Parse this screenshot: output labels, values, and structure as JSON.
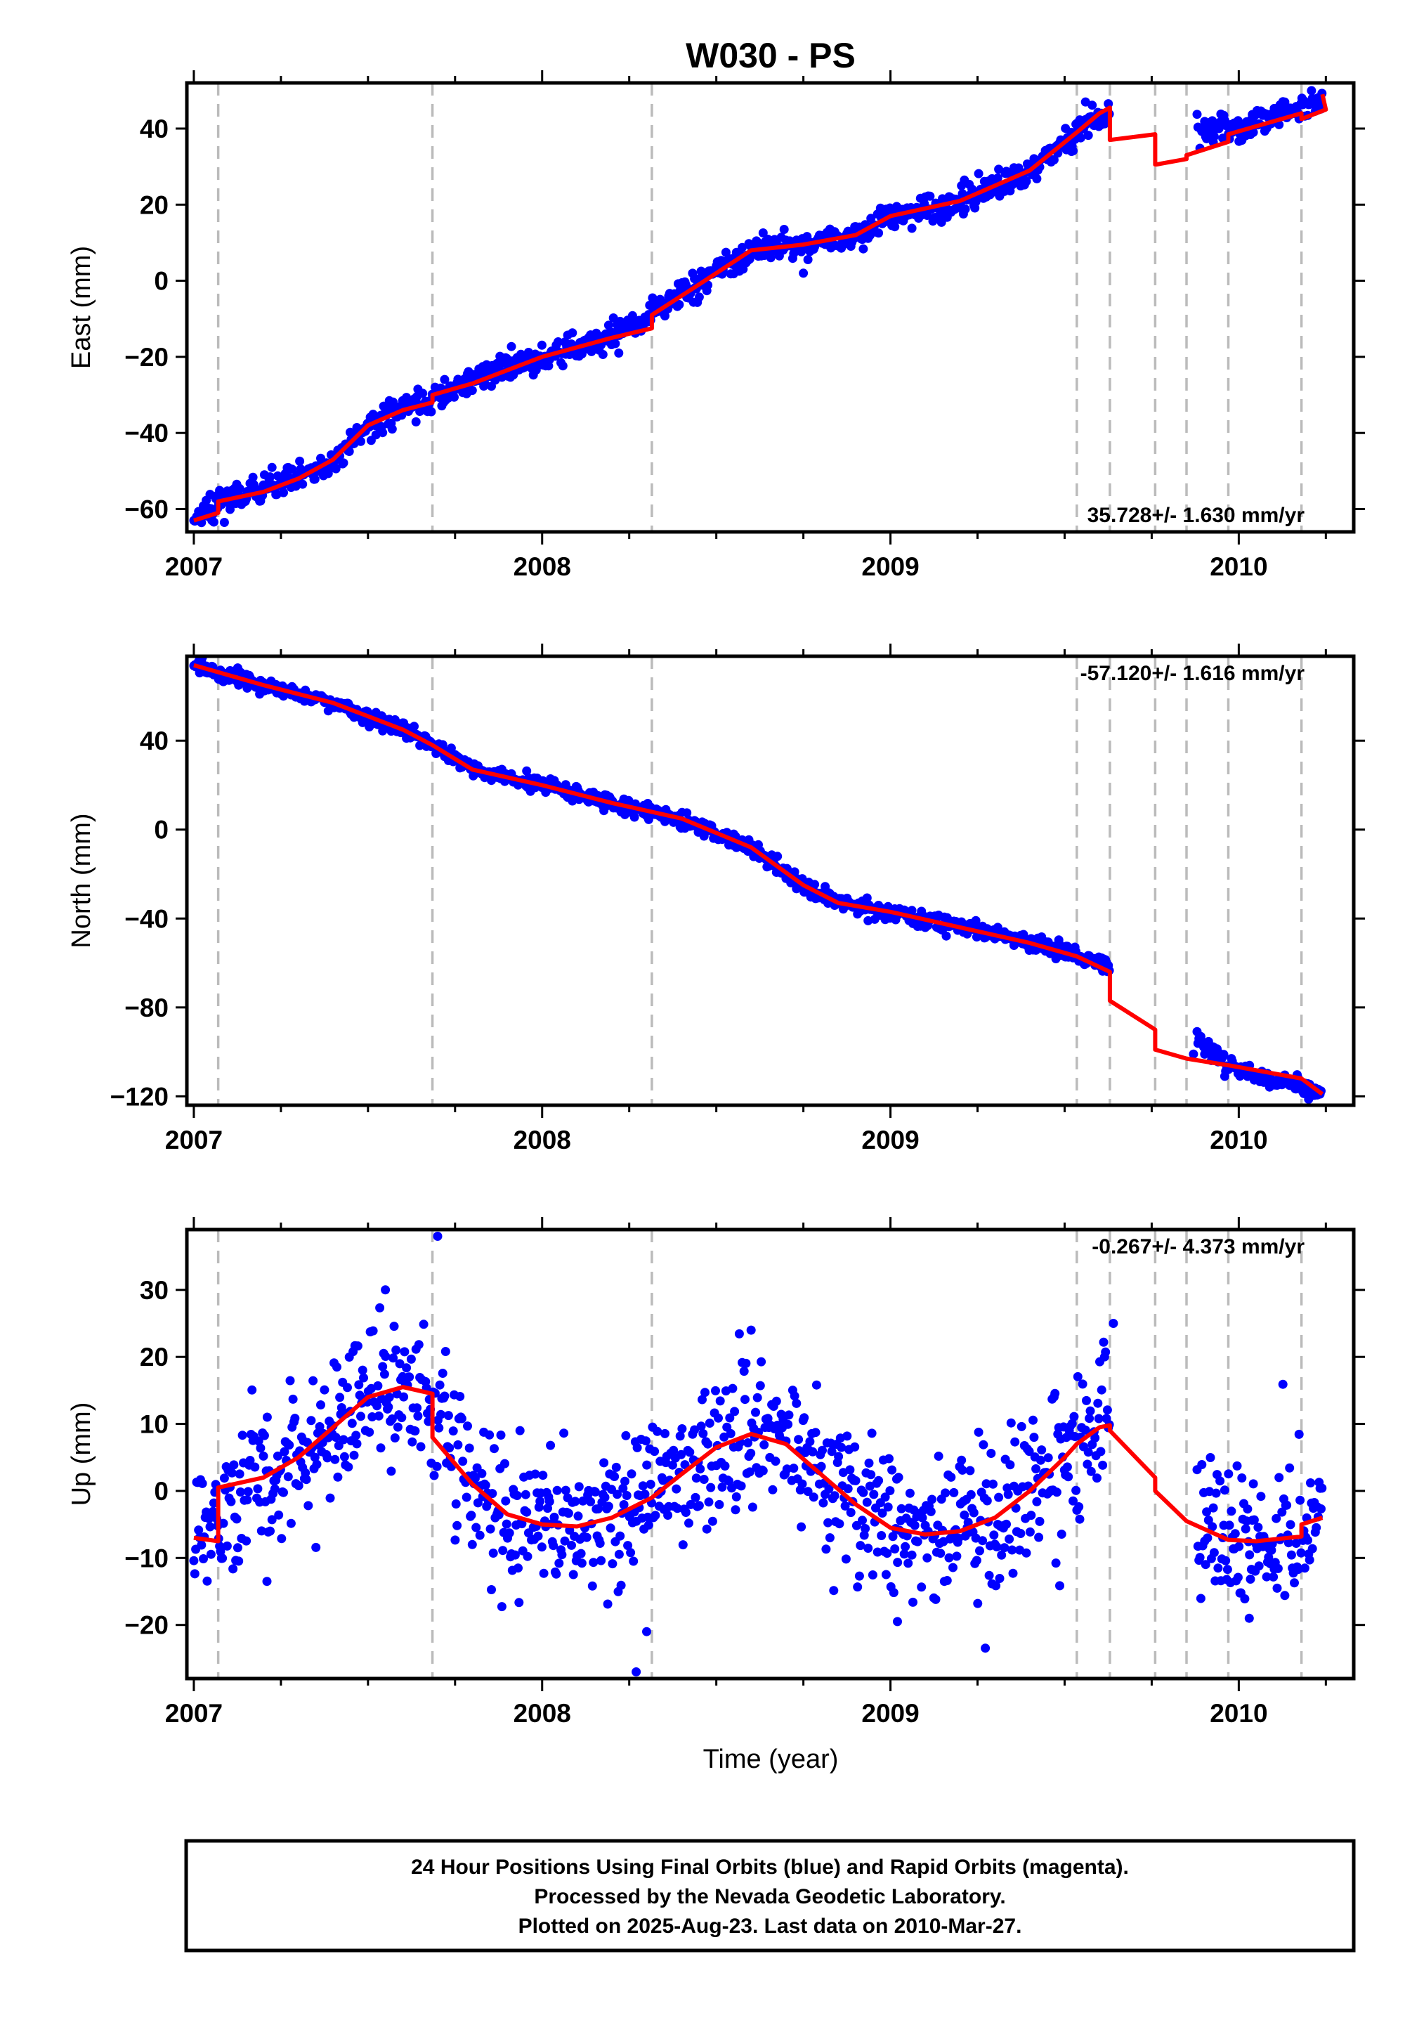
{
  "title": "W030 - PS",
  "xlabel": "Time (year)",
  "footer_lines": [
    "24 Hour Positions Using Final Orbits (blue) and Rapid Orbits (magenta).",
    "Processed by the Nevada Geodetic Laboratory.",
    "Plotted on 2025-Aug-23. Last data on 2010-Mar-27."
  ],
  "colors": {
    "points": "#0000ff",
    "model": "#ff0000",
    "steps": "#bbbbbb",
    "frame": "#000000"
  },
  "chart_data": [
    {
      "type": "scatter",
      "ylabel": "East (mm)",
      "rate_label": "35.728+/- 1.630 mm/yr",
      "xlim": [
        2006.98,
        2010.33
      ],
      "ylim": [
        -66,
        52
      ],
      "yticks": [
        -60,
        -40,
        -20,
        0,
        20,
        40
      ],
      "xticks": [
        2007,
        2008,
        2009,
        2010
      ],
      "step_epochs": [
        2007.07,
        2007.685,
        2008.315,
        2009.535,
        2009.63,
        2009.76,
        2009.85,
        2009.97,
        2010.18
      ],
      "model": [
        [
          2007.0,
          -63
        ],
        [
          2007.07,
          -61
        ],
        [
          2007.07,
          -58
        ],
        [
          2007.2,
          -55.5
        ],
        [
          2007.3,
          -52
        ],
        [
          2007.4,
          -47
        ],
        [
          2007.5,
          -38
        ],
        [
          2007.6,
          -34
        ],
        [
          2007.685,
          -32
        ],
        [
          2007.685,
          -30
        ],
        [
          2007.8,
          -27
        ],
        [
          2008.0,
          -20
        ],
        [
          2008.2,
          -15
        ],
        [
          2008.315,
          -12.5
        ],
        [
          2008.315,
          -9
        ],
        [
          2008.45,
          -1
        ],
        [
          2008.6,
          8
        ],
        [
          2008.75,
          9.5
        ],
        [
          2008.9,
          12
        ],
        [
          2009.0,
          17
        ],
        [
          2009.2,
          21
        ],
        [
          2009.4,
          29
        ],
        [
          2009.535,
          39
        ],
        [
          2009.6,
          44
        ],
        [
          2009.63,
          45.5
        ],
        [
          2009.63,
          37
        ],
        [
          2009.76,
          38.5
        ],
        [
          2009.76,
          30.5
        ],
        [
          2009.85,
          32
        ],
        [
          2009.85,
          33
        ],
        [
          2009.97,
          36.5
        ],
        [
          2009.97,
          38.5
        ],
        [
          2010.18,
          44
        ],
        [
          2010.18,
          42.5
        ],
        [
          2010.25,
          45
        ],
        [
          2010.24,
          49
        ]
      ],
      "anchors": [
        [
          2007.0,
          -63
        ],
        [
          2007.07,
          -58
        ],
        [
          2007.2,
          -55
        ],
        [
          2007.3,
          -52
        ],
        [
          2007.4,
          -48
        ],
        [
          2007.5,
          -38
        ],
        [
          2007.6,
          -34
        ],
        [
          2007.7,
          -30
        ],
        [
          2007.8,
          -26
        ],
        [
          2008.0,
          -20
        ],
        [
          2008.2,
          -15
        ],
        [
          2008.32,
          -8
        ],
        [
          2008.45,
          -1
        ],
        [
          2008.6,
          8
        ],
        [
          2008.75,
          9
        ],
        [
          2008.9,
          12
        ],
        [
          2009.0,
          17
        ],
        [
          2009.2,
          21
        ],
        [
          2009.4,
          29
        ],
        [
          2009.55,
          40
        ],
        [
          2009.63,
          45
        ],
        [
          2009.97,
          39
        ],
        [
          2010.24,
          48
        ]
      ],
      "gaps": [
        [
          2009.63,
          2009.88
        ]
      ],
      "noise": 1.8,
      "outliers": [
        [
          2008.22,
          -19
        ],
        [
          2008.75,
          2
        ],
        [
          2009.52,
          34
        ],
        [
          2009.56,
          47
        ]
      ]
    },
    {
      "type": "scatter",
      "ylabel": "North (mm)",
      "rate_label": "-57.120+/- 1.616 mm/yr",
      "xlim": [
        2006.98,
        2010.33
      ],
      "ylim": [
        -124,
        78
      ],
      "yticks": [
        -120,
        -80,
        -40,
        0,
        40
      ],
      "xticks": [
        2007,
        2008,
        2009,
        2010
      ],
      "step_epochs": [
        2007.07,
        2007.685,
        2008.315,
        2009.535,
        2009.63,
        2009.76,
        2009.85,
        2009.97,
        2010.18
      ],
      "model": [
        [
          2007.0,
          74
        ],
        [
          2007.2,
          65
        ],
        [
          2007.4,
          57
        ],
        [
          2007.6,
          45
        ],
        [
          2007.685,
          38
        ],
        [
          2007.8,
          27
        ],
        [
          2008.0,
          20
        ],
        [
          2008.2,
          12
        ],
        [
          2008.4,
          5
        ],
        [
          2008.6,
          -8
        ],
        [
          2008.75,
          -25
        ],
        [
          2008.85,
          -33
        ],
        [
          2009.0,
          -37
        ],
        [
          2009.2,
          -44
        ],
        [
          2009.4,
          -51
        ],
        [
          2009.535,
          -57
        ],
        [
          2009.63,
          -64
        ],
        [
          2009.63,
          -77
        ],
        [
          2009.76,
          -90
        ],
        [
          2009.76,
          -99
        ],
        [
          2009.85,
          -103
        ],
        [
          2009.97,
          -106
        ],
        [
          2010.18,
          -112
        ],
        [
          2010.24,
          -119
        ]
      ],
      "anchors": [
        [
          2007.0,
          74
        ],
        [
          2007.2,
          65
        ],
        [
          2007.4,
          57
        ],
        [
          2007.6,
          45
        ],
        [
          2007.7,
          37
        ],
        [
          2007.8,
          27
        ],
        [
          2008.0,
          20
        ],
        [
          2008.2,
          12
        ],
        [
          2008.4,
          5
        ],
        [
          2008.6,
          -8
        ],
        [
          2008.75,
          -25
        ],
        [
          2008.85,
          -33
        ],
        [
          2009.0,
          -37
        ],
        [
          2009.2,
          -44
        ],
        [
          2009.4,
          -51
        ],
        [
          2009.55,
          -58
        ],
        [
          2009.63,
          -62
        ],
        [
          2009.97,
          -106
        ],
        [
          2010.24,
          -119
        ]
      ],
      "gaps": [
        [
          2009.63,
          2009.88
        ]
      ],
      "noise": 1.8,
      "outliers": [
        [
          2009.87,
          -101
        ],
        [
          2008.55,
          -2
        ],
        [
          2007.6,
          48
        ]
      ]
    },
    {
      "type": "scatter",
      "ylabel": "Up (mm)",
      "rate_label": "-0.267+/- 4.373 mm/yr",
      "xlim": [
        2006.98,
        2010.33
      ],
      "ylim": [
        -28,
        39
      ],
      "yticks": [
        -20,
        -10,
        0,
        10,
        20,
        30
      ],
      "xticks": [
        2007,
        2008,
        2009,
        2010
      ],
      "step_epochs": [
        2007.07,
        2007.685,
        2008.315,
        2009.535,
        2009.63,
        2009.76,
        2009.85,
        2009.97,
        2010.18
      ],
      "model": [
        [
          2007.0,
          -7
        ],
        [
          2007.07,
          -7.5
        ],
        [
          2007.07,
          0.5
        ],
        [
          2007.2,
          2
        ],
        [
          2007.3,
          5
        ],
        [
          2007.4,
          9.5
        ],
        [
          2007.5,
          14
        ],
        [
          2007.6,
          15.5
        ],
        [
          2007.685,
          14.5
        ],
        [
          2007.685,
          8
        ],
        [
          2007.8,
          1
        ],
        [
          2007.9,
          -3.5
        ],
        [
          2008.0,
          -5
        ],
        [
          2008.1,
          -5.3
        ],
        [
          2008.2,
          -4
        ],
        [
          2008.315,
          -1
        ],
        [
          2008.4,
          2.5
        ],
        [
          2008.5,
          6.5
        ],
        [
          2008.6,
          8.5
        ],
        [
          2008.7,
          7
        ],
        [
          2008.8,
          2.5
        ],
        [
          2008.9,
          -2
        ],
        [
          2009.0,
          -5.5
        ],
        [
          2009.1,
          -6.5
        ],
        [
          2009.2,
          -6
        ],
        [
          2009.3,
          -4
        ],
        [
          2009.4,
          0
        ],
        [
          2009.5,
          5
        ],
        [
          2009.535,
          7
        ],
        [
          2009.6,
          9.5
        ],
        [
          2009.63,
          9.8
        ],
        [
          2009.63,
          9
        ],
        [
          2009.76,
          2
        ],
        [
          2009.76,
          0
        ],
        [
          2009.85,
          -4.5
        ],
        [
          2009.97,
          -7.3
        ],
        [
          2010.05,
          -7.5
        ],
        [
          2010.18,
          -6.8
        ],
        [
          2010.18,
          -5
        ],
        [
          2010.24,
          -4
        ]
      ],
      "anchors": [
        [
          2007.0,
          -7
        ],
        [
          2007.07,
          -2
        ],
        [
          2007.2,
          2
        ],
        [
          2007.3,
          5
        ],
        [
          2007.4,
          9.5
        ],
        [
          2007.5,
          14
        ],
        [
          2007.6,
          15.5
        ],
        [
          2007.68,
          14
        ],
        [
          2007.8,
          1
        ],
        [
          2007.9,
          -3.5
        ],
        [
          2008.0,
          -5
        ],
        [
          2008.1,
          -5.3
        ],
        [
          2008.2,
          -4
        ],
        [
          2008.3,
          -1
        ],
        [
          2008.4,
          2.5
        ],
        [
          2008.5,
          6.5
        ],
        [
          2008.6,
          8.5
        ],
        [
          2008.7,
          7
        ],
        [
          2008.8,
          2.5
        ],
        [
          2008.9,
          -2
        ],
        [
          2009.0,
          -5.5
        ],
        [
          2009.1,
          -6.5
        ],
        [
          2009.2,
          -6
        ],
        [
          2009.3,
          -4
        ],
        [
          2009.4,
          0
        ],
        [
          2009.5,
          5
        ],
        [
          2009.6,
          9.5
        ],
        [
          2009.63,
          9.8
        ],
        [
          2009.97,
          -7.3
        ],
        [
          2010.05,
          -7.5
        ],
        [
          2010.18,
          -6
        ],
        [
          2010.24,
          -4
        ]
      ],
      "gaps": [
        [
          2009.63,
          2009.88
        ]
      ],
      "noise": 5.5,
      "outliers": [
        [
          2007.7,
          38
        ],
        [
          2007.55,
          30
        ],
        [
          2008.27,
          -27
        ],
        [
          2008.3,
          -21
        ],
        [
          2008.6,
          24
        ],
        [
          2009.64,
          25
        ],
        [
          2007.21,
          -13.5
        ],
        [
          2009.02,
          -19.5
        ],
        [
          2010.03,
          -19
        ]
      ]
    }
  ]
}
